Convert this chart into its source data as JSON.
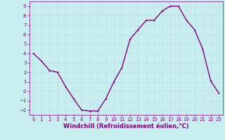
{
  "x": [
    0,
    1,
    2,
    3,
    4,
    5,
    6,
    7,
    8,
    9,
    10,
    11,
    12,
    13,
    14,
    15,
    16,
    17,
    18,
    19,
    20,
    21,
    22,
    23
  ],
  "y": [
    4.0,
    3.2,
    2.2,
    2.0,
    0.5,
    -0.8,
    -2.0,
    -2.1,
    -2.1,
    -0.8,
    1.0,
    2.5,
    5.5,
    6.5,
    7.5,
    7.5,
    8.5,
    9.0,
    9.0,
    7.5,
    6.5,
    4.5,
    1.1,
    -0.2
  ],
  "line_color": "#800080",
  "marker_color": "#800080",
  "bg_color": "#c8eef0",
  "grid_color": "#c0dfe1",
  "xlabel": "Windchill (Refroidissement éolien,°C)",
  "xlim_min": -0.5,
  "xlim_max": 23.5,
  "ylim_min": -2.5,
  "ylim_max": 9.5,
  "yticks": [
    -2,
    -1,
    0,
    1,
    2,
    3,
    4,
    5,
    6,
    7,
    8,
    9
  ],
  "xticks": [
    0,
    1,
    2,
    3,
    4,
    5,
    6,
    7,
    8,
    9,
    10,
    11,
    12,
    13,
    14,
    15,
    16,
    17,
    18,
    19,
    20,
    21,
    22,
    23
  ],
  "tick_color": "#800080",
  "tick_fontsize": 5.0,
  "xlabel_fontsize": 6.0,
  "line_width": 1.0,
  "marker_size": 2.0
}
